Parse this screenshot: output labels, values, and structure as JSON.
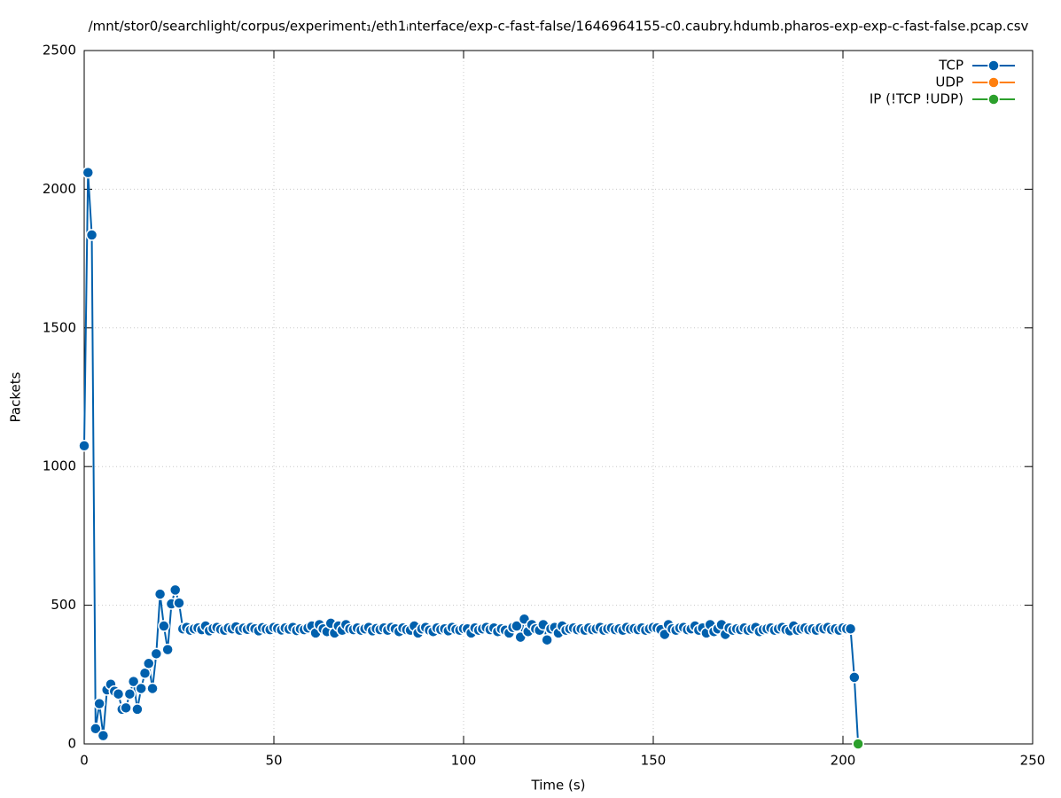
{
  "chart_data": {
    "type": "line",
    "title": "/mnt/stor0/searchlight/corpus/experiment₁/eth1ᵢnterface/exp-c-fast-false/1646964155-c0.caubry.hdumb.pharos-exp-exp-c-fast-false.pcap.csv",
    "x_label": "Time (s)",
    "y_label": "Packets",
    "xlim": [
      0,
      250
    ],
    "xticks": [
      0,
      50,
      100,
      150,
      200,
      250
    ],
    "ylim": [
      0,
      2500
    ],
    "yticks": [
      0,
      500,
      1000,
      1500,
      2000,
      2500
    ],
    "grid": true,
    "legend": "top-right",
    "series": [
      {
        "name": "TCP",
        "color": "#0060ad",
        "x": [
          0,
          1,
          2,
          3,
          4,
          5,
          6,
          7,
          8,
          9,
          10,
          11,
          12,
          13,
          14,
          15,
          16,
          17,
          18,
          19,
          20,
          21,
          22,
          23,
          24,
          25,
          26,
          27,
          28,
          29,
          30,
          31,
          32,
          33,
          34,
          35,
          36,
          37,
          38,
          39,
          40,
          41,
          42,
          43,
          44,
          45,
          46,
          47,
          48,
          49,
          50,
          51,
          52,
          53,
          54,
          55,
          56,
          57,
          58,
          59,
          60,
          61,
          62,
          63,
          64,
          65,
          66,
          67,
          68,
          69,
          70,
          71,
          72,
          73,
          74,
          75,
          76,
          77,
          78,
          79,
          80,
          81,
          82,
          83,
          84,
          85,
          86,
          87,
          88,
          89,
          90,
          91,
          92,
          93,
          94,
          95,
          96,
          97,
          98,
          99,
          100,
          101,
          102,
          103,
          104,
          105,
          106,
          107,
          108,
          109,
          110,
          111,
          112,
          113,
          114,
          115,
          116,
          117,
          118,
          119,
          120,
          121,
          122,
          123,
          124,
          125,
          126,
          127,
          128,
          129,
          130,
          131,
          132,
          133,
          134,
          135,
          136,
          137,
          138,
          139,
          140,
          141,
          142,
          143,
          144,
          145,
          146,
          147,
          148,
          149,
          150,
          151,
          152,
          153,
          154,
          155,
          156,
          157,
          158,
          159,
          160,
          161,
          162,
          163,
          164,
          165,
          166,
          167,
          168,
          169,
          170,
          171,
          172,
          173,
          174,
          175,
          176,
          177,
          178,
          179,
          180,
          181,
          182,
          183,
          184,
          185,
          186,
          187,
          188,
          189,
          190,
          191,
          192,
          193,
          194,
          195,
          196,
          197,
          198,
          199,
          200,
          201,
          202,
          203,
          204
        ],
        "values": [
          1075,
          2060,
          1835,
          55,
          145,
          30,
          195,
          215,
          190,
          180,
          125,
          130,
          180,
          225,
          125,
          200,
          255,
          290,
          200,
          325,
          540,
          425,
          340,
          505,
          555,
          508,
          415,
          420,
          410,
          415,
          418,
          412,
          425,
          408,
          416,
          420,
          413,
          410,
          418,
          415,
          422,
          410,
          417,
          413,
          420,
          415,
          408,
          419,
          414,
          412,
          420,
          416,
          411,
          418,
          414,
          420,
          409,
          415,
          412,
          418,
          425,
          400,
          430,
          415,
          405,
          435,
          400,
          425,
          410,
          430,
          415,
          412,
          418,
          410,
          415,
          420,
          408,
          416,
          412,
          418,
          410,
          420,
          415,
          405,
          418,
          412,
          410,
          425,
          400,
          415,
          420,
          410,
          405,
          418,
          412,
          415,
          408,
          420,
          413,
          410,
          416,
          415,
          400,
          418,
          410,
          415,
          420,
          412,
          418,
          405,
          415,
          410,
          400,
          420,
          425,
          385,
          450,
          405,
          430,
          415,
          410,
          430,
          375,
          415,
          420,
          400,
          425,
          410,
          415,
          418,
          412,
          415,
          410,
          418,
          412,
          415,
          420,
          410,
          415,
          418,
          412,
          415,
          410,
          420,
          414,
          416,
          412,
          418,
          410,
          415,
          420,
          418,
          412,
          395,
          430,
          415,
          410,
          418,
          420,
          412,
          415,
          425,
          410,
          418,
          400,
          430,
          405,
          415,
          430,
          395,
          418,
          410,
          415,
          412,
          418,
          410,
          415,
          420,
          405,
          412,
          415,
          418,
          410,
          415,
          420,
          412,
          408,
          425,
          410,
          415,
          418,
          412,
          415,
          410,
          418,
          415,
          420,
          412,
          415,
          410,
          418,
          415,
          415,
          240,
          0
        ]
      },
      {
        "name": "UDP",
        "color": "#ff7f0e",
        "x": [
          204
        ],
        "values": [
          0
        ]
      },
      {
        "name": "IP (!TCP  !UDP)",
        "color": "#2ca02c",
        "x": [
          204
        ],
        "values": [
          0
        ]
      }
    ]
  }
}
